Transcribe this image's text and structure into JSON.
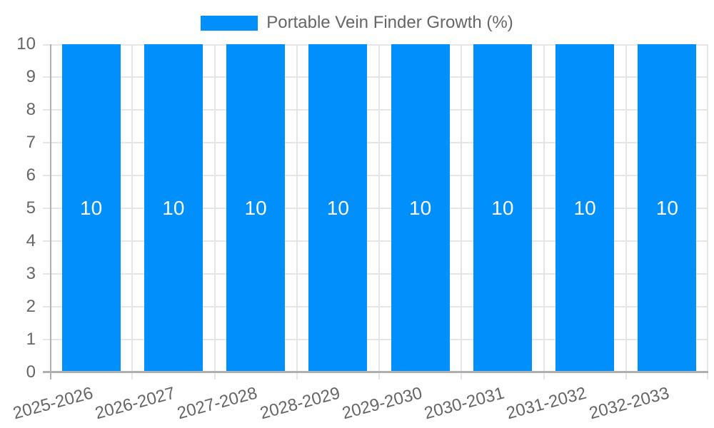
{
  "chart_data": {
    "type": "bar",
    "title": "Portable Vein Finder Growth (%)",
    "legend": {
      "position": "top",
      "label": "Portable Vein Finder Growth (%)"
    },
    "categories": [
      "2025-2026",
      "2026-2027",
      "2027-2028",
      "2028-2029",
      "2029-2030",
      "2030-2031",
      "2031-2032",
      "2032-2033"
    ],
    "values": [
      10,
      10,
      10,
      10,
      10,
      10,
      10,
      10
    ],
    "bar_value_labels": [
      "10",
      "10",
      "10",
      "10",
      "10",
      "10",
      "10",
      "10"
    ],
    "xlabel": "",
    "ylabel": "",
    "ylim": [
      0,
      10
    ],
    "yticks": [
      0,
      1,
      2,
      3,
      4,
      5,
      6,
      7,
      8,
      9,
      10
    ],
    "x_label_rotation_deg": -15,
    "grid": true,
    "legend_position": "top",
    "colors": {
      "bar": "#008FFB",
      "bar_label": "#FFFFFF",
      "label": "#666666",
      "grid": "#E6E6E6",
      "axis": "#B0B0B0",
      "background": "#FFFFFF"
    }
  }
}
